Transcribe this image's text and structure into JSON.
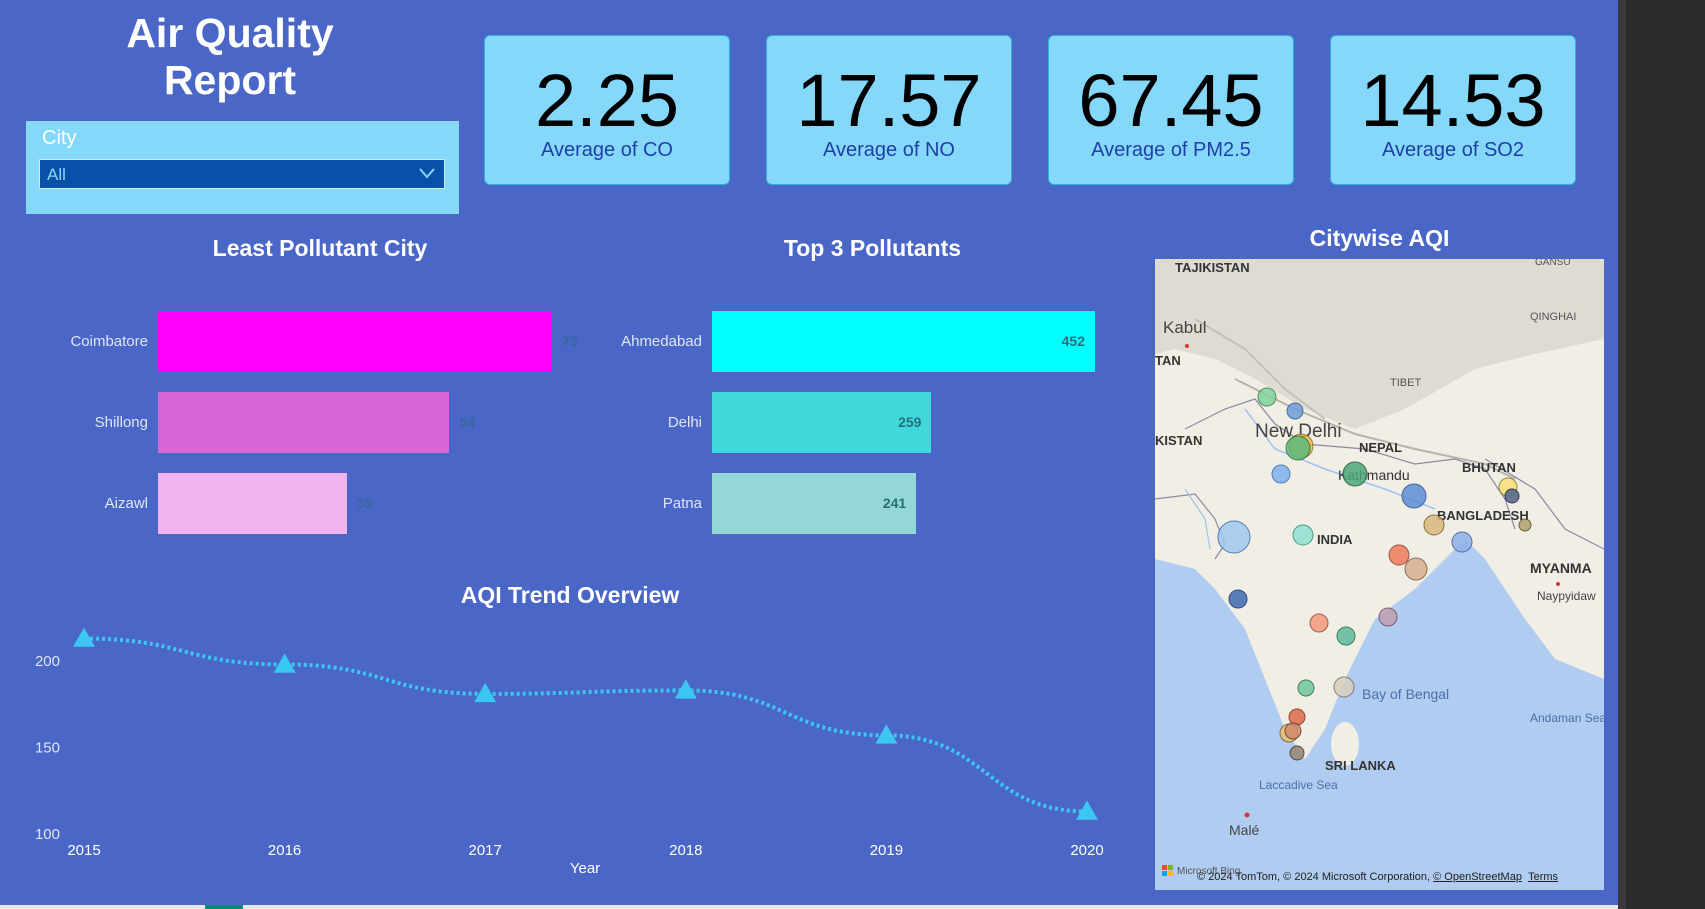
{
  "report": {
    "title_line1": "Air Quality",
    "title_line2": "Report"
  },
  "slicer": {
    "label": "City",
    "selected": "All"
  },
  "kpis": [
    {
      "value": "2.25",
      "label": "Average of CO"
    },
    {
      "value": "17.57",
      "label": "Average of NO"
    },
    {
      "value": "67.45",
      "label": "Average of PM2.5"
    },
    {
      "value": "14.53",
      "label": "Average of SO2"
    }
  ],
  "least_pollutant": {
    "title": "Least Pollutant City",
    "chart_data": {
      "type": "bar",
      "categories": [
        "Coimbatore",
        "Shillong",
        "Aizawl"
      ],
      "values": [
        73,
        54,
        35
      ],
      "colors": [
        "#ff00ff",
        "#d966d6",
        "#f2b3ee"
      ]
    }
  },
  "top3": {
    "title": "Top 3 Pollutants",
    "chart_data": {
      "type": "bar",
      "categories": [
        "Ahmedabad",
        "Delhi",
        "Patna"
      ],
      "values": [
        452,
        259,
        241
      ],
      "colors": [
        "#00ffff",
        "#40d9db",
        "#93d8d6"
      ]
    }
  },
  "map": {
    "title": "Citywise AQI",
    "labels": {
      "tajikistan": "TAJIKISTAN",
      "gansu": "GANSU",
      "kabul": "Kabul",
      "qinghai": "QINGHAI",
      "tan": "TAN",
      "tibet": "TIBET",
      "new_delhi": "New Delhi",
      "kistan": "KISTAN",
      "nepal": "NEPAL",
      "kathmandu": "Kathmandu",
      "bhutan": "BHUTAN",
      "bangladesh": "BANGLADESH",
      "india": "INDIA",
      "myanmar": "MYANMA",
      "naypyidaw": "Naypyidaw",
      "bay_of_bengal": "Bay of Bengal",
      "andaman_sea": "Andaman Sea",
      "sri_lanka": "SRI LANKA",
      "laccadive_sea": "Laccadive Sea",
      "male": "Malé"
    },
    "attribution": "© 2024 TomTom, © 2024 Microsoft Corporation,",
    "attribution_link": "© OpenStreetMap",
    "terms": "Terms",
    "provider": "Microsoft Bing"
  },
  "trend": {
    "title": "AQI Trend Overview",
    "chart_data": {
      "type": "line",
      "x": [
        "2015",
        "2016",
        "2017",
        "2018",
        "2019",
        "2020"
      ],
      "values": [
        213,
        198,
        181,
        183,
        157,
        113
      ],
      "xlabel": "Year",
      "ylabel": "",
      "ylim": [
        100,
        225
      ],
      "yticks": [
        "200",
        "150",
        "100"
      ],
      "ytick_values": [
        200,
        150,
        100
      ],
      "color": "#3cc6f2",
      "marker": "triangle",
      "line_style": "dotted"
    }
  }
}
